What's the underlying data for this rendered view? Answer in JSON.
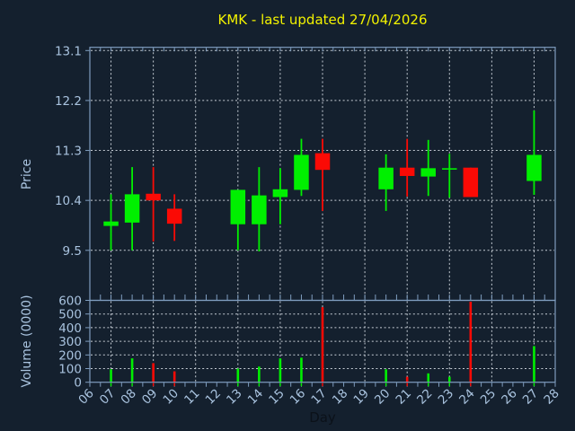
{
  "title": "KMK - last updated 27/04/2026",
  "colors": {
    "background": "#14202e",
    "frame": "#7f9dbf",
    "grid": "#c6cdd5",
    "up": "#00f000",
    "down": "#fb0a05",
    "title": "#f2f200",
    "tick_label": "#a9c3df",
    "day_label": "#0b1119"
  },
  "chart_data": [
    {
      "type": "candlestick",
      "panel": "price",
      "ylabel": "Price",
      "ylim": [
        8.6,
        13.16
      ],
      "yticks": [
        9.5,
        10.4,
        11.3,
        12.2,
        13.1
      ],
      "xlim": [
        6,
        28
      ],
      "grid": true,
      "candles": [
        {
          "day": 7,
          "open": 9.94,
          "high": 10.51,
          "low": 9.5,
          "close": 10.02,
          "dir": "up"
        },
        {
          "day": 8,
          "open": 10.0,
          "high": 11.0,
          "low": 9.5,
          "close": 10.51,
          "dir": "up"
        },
        {
          "day": 9,
          "open": 10.52,
          "high": 11.0,
          "low": 9.66,
          "close": 10.4,
          "dir": "down"
        },
        {
          "day": 10,
          "open": 10.25,
          "high": 10.51,
          "low": 9.67,
          "close": 9.98,
          "dir": "down"
        },
        {
          "day": 13,
          "open": 9.97,
          "high": 10.59,
          "low": 9.5,
          "close": 10.59,
          "dir": "up"
        },
        {
          "day": 14,
          "open": 9.97,
          "high": 11.0,
          "low": 9.48,
          "close": 10.49,
          "dir": "up"
        },
        {
          "day": 15,
          "open": 10.46,
          "high": 10.98,
          "low": 9.97,
          "close": 10.6,
          "dir": "up"
        },
        {
          "day": 16,
          "open": 10.59,
          "high": 11.51,
          "low": 10.48,
          "close": 11.22,
          "dir": "up"
        },
        {
          "day": 17,
          "open": 11.25,
          "high": 11.51,
          "low": 10.21,
          "close": 10.95,
          "dir": "down"
        },
        {
          "day": 20,
          "open": 10.6,
          "high": 11.23,
          "low": 10.21,
          "close": 10.99,
          "dir": "up"
        },
        {
          "day": 21,
          "open": 10.99,
          "high": 11.51,
          "low": 10.47,
          "close": 10.84,
          "dir": "down"
        },
        {
          "day": 22,
          "open": 10.83,
          "high": 11.49,
          "low": 10.48,
          "close": 10.98,
          "dir": "up"
        },
        {
          "day": 23,
          "open": 10.96,
          "high": 11.24,
          "low": 10.45,
          "close": 10.98,
          "dir": "up"
        },
        {
          "day": 24,
          "open": 10.99,
          "high": 10.99,
          "low": 10.46,
          "close": 10.46,
          "dir": "down"
        },
        {
          "day": 27,
          "open": 10.75,
          "high": 12.02,
          "low": 10.5,
          "close": 11.22,
          "dir": "up"
        }
      ]
    },
    {
      "type": "bar",
      "panel": "volume",
      "ylabel": "Volume (0000)",
      "xlabel": "Day",
      "ylim": [
        0,
        600
      ],
      "yticks": [
        0,
        100,
        200,
        300,
        400,
        500,
        600
      ],
      "xticks": [
        "06",
        "07",
        "08",
        "09",
        "10",
        "11",
        "12",
        "13",
        "14",
        "15",
        "16",
        "17",
        "18",
        "19",
        "20",
        "21",
        "22",
        "23",
        "24",
        "25",
        "26",
        "27",
        "28"
      ],
      "grid": true,
      "bars": [
        {
          "day": 7,
          "value": 95,
          "dir": "up"
        },
        {
          "day": 8,
          "value": 175,
          "dir": "up"
        },
        {
          "day": 9,
          "value": 140,
          "dir": "down"
        },
        {
          "day": 10,
          "value": 80,
          "dir": "down"
        },
        {
          "day": 13,
          "value": 100,
          "dir": "up"
        },
        {
          "day": 14,
          "value": 115,
          "dir": "up"
        },
        {
          "day": 15,
          "value": 175,
          "dir": "up"
        },
        {
          "day": 16,
          "value": 180,
          "dir": "up"
        },
        {
          "day": 17,
          "value": 550,
          "dir": "down"
        },
        {
          "day": 20,
          "value": 95,
          "dir": "up"
        },
        {
          "day": 21,
          "value": 40,
          "dir": "down"
        },
        {
          "day": 22,
          "value": 65,
          "dir": "up"
        },
        {
          "day": 23,
          "value": 40,
          "dir": "up"
        },
        {
          "day": 24,
          "value": 590,
          "dir": "down"
        },
        {
          "day": 27,
          "value": 265,
          "dir": "up"
        }
      ]
    }
  ]
}
